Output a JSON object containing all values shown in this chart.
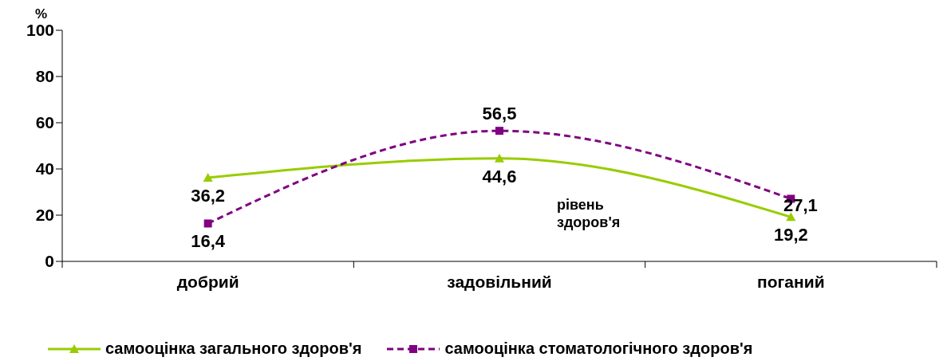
{
  "chart_data": {
    "type": "line",
    "ylabel": "%",
    "xlabel": "рівень здоров'я",
    "categories": [
      "добрий",
      "задовільний",
      "поганий"
    ],
    "series": [
      {
        "name": "самооцінка загального здоров'я",
        "color": "#99cc00",
        "values": [
          36.2,
          44.6,
          19.2
        ],
        "value_labels": [
          "36,2",
          "44,6",
          "19,2"
        ],
        "marker": "triangle",
        "line_style": "solid"
      },
      {
        "name": "самооцінка стоматологічного здоров'я",
        "color": "#800080",
        "values": [
          16.4,
          56.5,
          27.1
        ],
        "value_labels": [
          "16,4",
          "56,5",
          "27,1"
        ],
        "marker": "square",
        "line_style": "dashed"
      }
    ],
    "ylim": [
      0,
      100
    ],
    "yticks": [
      0,
      20,
      40,
      60,
      80,
      100
    ],
    "legend": "bottom"
  }
}
